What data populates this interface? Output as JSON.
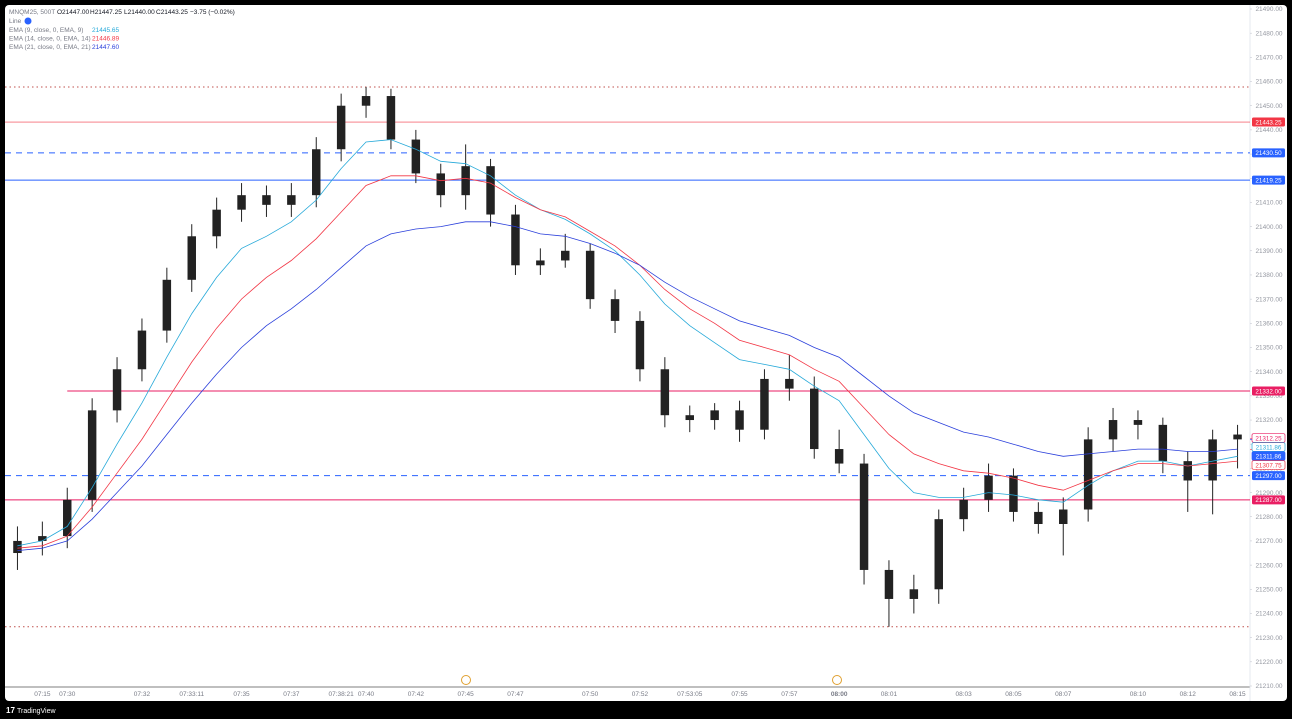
{
  "chart_data": {
    "type": "candlestick",
    "title": "MNQM25, 500T",
    "ohlc": [
      "O21447.00",
      "H21447.25",
      "L21440.00",
      "C21443.25"
    ],
    "change": "−3.75 (−0.02%)",
    "line_label": "Line",
    "categories": [
      null,
      "07:15",
      "07:30",
      null,
      null,
      "07:32",
      null,
      "07:33:11",
      null,
      "07:35",
      null,
      "07:37",
      null,
      "07:38:21",
      "07:40",
      null,
      "07:42",
      null,
      "07:45",
      null,
      "07:47",
      null,
      null,
      "07:50",
      null,
      "07:52",
      null,
      "07:53:05",
      null,
      "07:55",
      null,
      "07:57",
      null,
      "08:00",
      null,
      "08:01",
      null,
      null,
      "08:03",
      null,
      "08:05",
      null,
      "08:07",
      null,
      null,
      "08:10",
      null,
      "08:12",
      null,
      "08:15"
    ],
    "candles": {
      "up_color": "#222222",
      "down_color": "#222222",
      "open": [
        21265,
        21270,
        21272,
        21287,
        21324,
        21341,
        21357,
        21378,
        21396,
        21407,
        21413,
        21409,
        21413,
        21432,
        21450,
        21454,
        21436,
        21422,
        21413,
        21425,
        21405,
        21384,
        21386,
        21390,
        21370,
        21361,
        21341,
        21322,
        21320,
        21324,
        21316,
        21337,
        21333,
        21308,
        21302,
        21258,
        21246,
        21250,
        21279,
        21287,
        21297,
        21282,
        21277,
        21283,
        21312,
        21320,
        21318,
        21303,
        21295,
        21312
      ],
      "high": [
        21276,
        21278,
        21292,
        21329,
        21346,
        21362,
        21383,
        21401,
        21412,
        21418,
        21417,
        21418,
        21437,
        21455,
        21457.75,
        21457,
        21440,
        21426,
        21434,
        21428,
        21409,
        21391,
        21397,
        21393,
        21374,
        21365,
        21346,
        21326,
        21327,
        21328,
        21341,
        21347,
        21338,
        21316,
        21306,
        21262,
        21256,
        21283,
        21292,
        21302,
        21300,
        21286,
        21288,
        21317,
        21325,
        21324,
        21321,
        21307,
        21316,
        21318
      ],
      "low": [
        21258,
        21264,
        21267,
        21282,
        21319,
        21336,
        21352,
        21373,
        21391,
        21402,
        21404,
        21404,
        21408,
        21427,
        21445,
        21432,
        21418,
        21408,
        21407,
        21400,
        21380,
        21380,
        21383,
        21366,
        21356,
        21336,
        21317,
        21315,
        21316,
        21311,
        21312,
        21328,
        21304,
        21298,
        21252,
        21234.5,
        21240,
        21244,
        21274,
        21282,
        21278,
        21273,
        21264,
        21278,
        21307,
        21312,
        21298,
        21282,
        21281,
        21300
      ],
      "close": [
        21270,
        21272,
        21287,
        21324,
        21341,
        21357,
        21378,
        21396,
        21407,
        21413,
        21409,
        21413,
        21432,
        21450,
        21454,
        21436,
        21422,
        21413,
        21425,
        21405,
        21384,
        21386,
        21390,
        21370,
        21361,
        21341,
        21322,
        21320,
        21324,
        21316,
        21337,
        21333,
        21308,
        21302,
        21258,
        21246,
        21250,
        21279,
        21287,
        21297,
        21282,
        21277,
        21283,
        21312,
        21320,
        21318,
        21303,
        21295,
        21312,
        21314
      ]
    },
    "series": [
      {
        "name": "EMA (9, close, 0, EMA, 9)",
        "current": "21445.65",
        "color": "#26a9d9",
        "values": [
          21268,
          21270,
          21276,
          21292,
          21310,
          21327,
          21346,
          21364,
          21379,
          21391,
          21396,
          21402,
          21411,
          21424,
          21435,
          21436,
          21432,
          21427,
          21426,
          21421,
          21413,
          21407,
          21403,
          21397,
          21390,
          21380,
          21368,
          21359,
          21352,
          21345,
          21343,
          21341,
          21334,
          21328,
          21314,
          21300,
          21290,
          21288,
          21288,
          21290,
          21289,
          21287,
          21286,
          21293,
          21299,
          21303,
          21303,
          21301,
          21303,
          21305
        ]
      },
      {
        "name": "EMA (14, close, 0, EMA, 14)",
        "current": "21446.89",
        "color": "#f23645",
        "values": [
          21267,
          21268,
          21272,
          21284,
          21298,
          21312,
          21328,
          21344,
          21358,
          21370,
          21379,
          21386,
          21395,
          21406,
          21417,
          21421,
          21421,
          21419,
          21420,
          21418,
          21412,
          21407,
          21404,
          21398,
          21392,
          21384,
          21374,
          21366,
          21360,
          21353,
          21350,
          21347,
          21341,
          21336,
          21325,
          21314,
          21306,
          21302,
          21299,
          21298,
          21296,
          21293,
          21291,
          21295,
          21299,
          21302,
          21302,
          21301,
          21302,
          21303
        ]
      },
      {
        "name": "EMA (21, close, 0, EMA, 21)",
        "current": "21447.60",
        "color": "#2a3fdb",
        "values": [
          21266,
          21267,
          21270,
          21279,
          21290,
          21301,
          21314,
          21327,
          21339,
          21350,
          21359,
          21366,
          21374,
          21383,
          21392,
          21397,
          21399,
          21400,
          21402,
          21402,
          21400,
          21397,
          21396,
          21393,
          21389,
          21384,
          21377,
          21371,
          21366,
          21361,
          21358,
          21355,
          21350,
          21346,
          21338,
          21330,
          21323,
          21319,
          21315,
          21313,
          21310,
          21307,
          21305,
          21306,
          21307,
          21308,
          21308,
          21307,
          21307,
          21308
        ]
      }
    ],
    "hlines": [
      {
        "value": 21443.25,
        "label": "21443.25",
        "color": "#f23645",
        "dash": "none",
        "width": 0.6,
        "from": 0
      },
      {
        "value": 21430.5,
        "label": "21430.50",
        "color": "#2962ff",
        "dash": "6 5",
        "width": 1,
        "from": 0
      },
      {
        "value": 21419.25,
        "label": "21419.25",
        "color": "#2962ff",
        "dash": "none",
        "width": 1,
        "from": 0
      },
      {
        "value": 21332,
        "label": "21332.00",
        "color": "#e91e63",
        "dash": "none",
        "width": 1,
        "from": 2
      },
      {
        "value": 21297,
        "label": "21297.00",
        "color": "#2962ff",
        "dash": "6 5",
        "width": 1,
        "from": 0
      },
      {
        "value": 21287,
        "label": "21287.00",
        "color": "#e91e63",
        "dash": "none",
        "width": 1,
        "from": 0
      }
    ],
    "levels": [
      {
        "value": 21457.75,
        "color": "#c0504d"
      },
      {
        "value": 21234.5,
        "color": "#c0504d"
      }
    ],
    "price_labels": [
      {
        "value": 21312.25,
        "label": "21312.25",
        "color": "#e91e63",
        "filled": false
      },
      {
        "value": 21311.86,
        "label": "21311.86",
        "color": "#26a9d9",
        "filled": false
      },
      {
        "value": 21311.86,
        "label": "21311.86",
        "color": "#2962ff",
        "filled": true
      },
      {
        "value": 21307.75,
        "label": "21307.75",
        "color": "#f23645",
        "filled": false
      }
    ],
    "ylim": [
      21210,
      21490
    ],
    "yticks": [
      {
        "value": 21210,
        "label": "21210.00"
      },
      {
        "value": 21220,
        "label": "21220.00"
      },
      {
        "value": 21230,
        "label": "21230.00"
      },
      {
        "value": 21240,
        "label": "21240.00"
      },
      {
        "value": 21250,
        "label": "21250.00"
      },
      {
        "value": 21260,
        "label": "21260.00"
      },
      {
        "value": 21270,
        "label": "21270.00"
      },
      {
        "value": 21280,
        "label": "21280.00"
      },
      {
        "value": 21290,
        "label": "21290.00"
      },
      {
        "value": 21300,
        "label": "21300.00"
      },
      {
        "value": 21310,
        "label": "21310.00"
      },
      {
        "value": 21320,
        "label": "21320.00"
      },
      {
        "value": 21330,
        "label": "21330.00"
      },
      {
        "value": 21340,
        "label": "21340.00"
      },
      {
        "value": 21350,
        "label": "21350.00"
      },
      {
        "value": 21360,
        "label": "21360.00"
      },
      {
        "value": 21370,
        "label": "21370.00"
      },
      {
        "value": 21380,
        "label": "21380.00"
      },
      {
        "value": 21390,
        "label": "21390.00"
      },
      {
        "value": 21400,
        "label": "21400.00"
      },
      {
        "value": 21410,
        "label": "21410.00"
      },
      {
        "value": 21420,
        "label": "21420.00"
      },
      {
        "value": 21430,
        "label": "21430.00"
      },
      {
        "value": 21440,
        "label": "21440.00"
      },
      {
        "value": 21450,
        "label": "21450.00"
      },
      {
        "value": 21460,
        "label": "21460.00"
      },
      {
        "value": 21470,
        "label": "21470.00"
      },
      {
        "value": 21480,
        "label": "21480.00"
      },
      {
        "value": 21490,
        "label": "21490.00"
      }
    ],
    "grid": false
  },
  "footer": {
    "brand": "TradingView"
  }
}
